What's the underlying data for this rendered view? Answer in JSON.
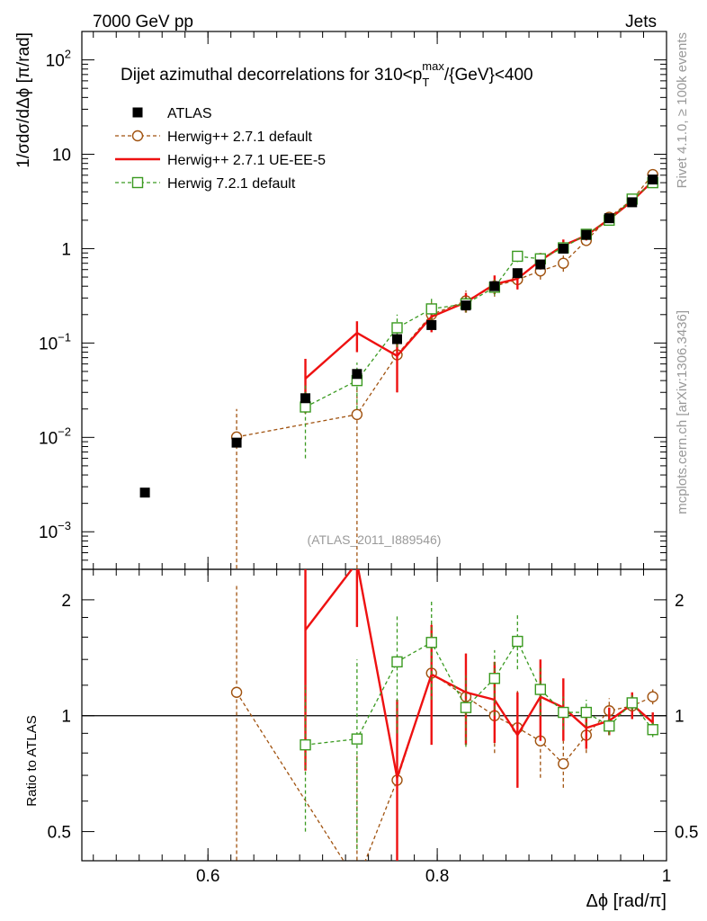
{
  "header": {
    "left": "7000 GeV pp",
    "right": "Jets"
  },
  "side_labels": {
    "rivet": "Rivet 4.1.0, ≥ 100k events",
    "mcplots": "mcplots.cern.ch [arXiv:1306.3436]"
  },
  "chart_data": {
    "type": "scatter",
    "title": "Dijet azimuthal decorrelations for 310<p_T^max/{GeV}<400",
    "title_parts": {
      "pre": "Dijet azimuthal decorrelations for 310<p",
      "sub": "T",
      "sup": "max",
      "post": "/{GeV}<400"
    },
    "analysis_tag": "(ATLAS_2011_I889546)",
    "xlabel": "Δϕ [rad/π]",
    "ylabel": "1/σdσ/dΔϕ [π/rad]",
    "ratio_ylabel": "Ratio to ATLAS",
    "xlim": [
      0.49,
      1.0
    ],
    "ylim": [
      0.0004,
      200
    ],
    "ratio_ylim": [
      0.42,
      2.4
    ],
    "x_ticks": [
      0.6,
      0.8,
      1.0
    ],
    "x_tick_labels": [
      "0.6",
      "0.8",
      "1"
    ],
    "y_tick_labels": [
      {
        "base": "10",
        "exp": "2",
        "value": 100
      },
      {
        "base": "10",
        "exp": "",
        "value": 10
      },
      {
        "base": "1",
        "exp": "",
        "value": 1
      },
      {
        "base": "10",
        "exp": "−1",
        "value": 0.1
      },
      {
        "base": "10",
        "exp": "−2",
        "value": 0.01
      },
      {
        "base": "10",
        "exp": "−3",
        "value": 0.001
      }
    ],
    "ratio_ticks": [
      {
        "label": "2",
        "value": 2
      },
      {
        "label": "1",
        "value": 1
      },
      {
        "label": "0.5",
        "value": 0.5
      }
    ],
    "series": [
      {
        "name": "ATLAS",
        "color": "#000000",
        "style": "data",
        "points": [
          {
            "x": 0.545,
            "y": 0.0026
          },
          {
            "x": 0.625,
            "y": 0.0088
          },
          {
            "x": 0.685,
            "y": 0.026
          },
          {
            "x": 0.73,
            "y": 0.047
          },
          {
            "x": 0.765,
            "y": 0.11
          },
          {
            "x": 0.795,
            "y": 0.155
          },
          {
            "x": 0.825,
            "y": 0.25
          },
          {
            "x": 0.85,
            "y": 0.4
          },
          {
            "x": 0.87,
            "y": 0.55
          },
          {
            "x": 0.89,
            "y": 0.68
          },
          {
            "x": 0.91,
            "y": 1.0
          },
          {
            "x": 0.93,
            "y": 1.4
          },
          {
            "x": 0.95,
            "y": 2.1
          },
          {
            "x": 0.97,
            "y": 3.1
          },
          {
            "x": 0.988,
            "y": 5.4
          }
        ]
      },
      {
        "name": "Herwig++ 2.7.1 default",
        "color": "#a0520f",
        "style": "dashed-circle",
        "points": [
          {
            "x": 0.625,
            "y": 0.0101,
            "lo": 0.0003,
            "hi": 0.02,
            "r": 1.15,
            "rlo": 0.3,
            "rhi": 2.2
          },
          {
            "x": 0.73,
            "y": 0.0175,
            "lo": 0.0003,
            "hi": 0.035,
            "r": 0.37,
            "rlo": 0.3,
            "rhi": 0.8
          },
          {
            "x": 0.765,
            "y": 0.075,
            "lo": 0.03,
            "hi": 0.13,
            "r": 0.68,
            "rlo": 0.3,
            "rhi": 1.1
          },
          {
            "x": 0.795,
            "y": 0.2,
            "lo": 0.14,
            "hi": 0.27,
            "r": 1.29,
            "rlo": 0.9,
            "rhi": 1.75
          },
          {
            "x": 0.825,
            "y": 0.28,
            "lo": 0.22,
            "hi": 0.36,
            "r": 1.12,
            "rlo": 0.88,
            "rhi": 1.45
          },
          {
            "x": 0.85,
            "y": 0.4,
            "lo": 0.31,
            "hi": 0.5,
            "r": 1.0,
            "rlo": 0.8,
            "rhi": 1.28
          },
          {
            "x": 0.87,
            "y": 0.47,
            "lo": 0.37,
            "hi": 0.6,
            "r": 0.93,
            "rlo": 0.75,
            "rhi": 1.17
          },
          {
            "x": 0.89,
            "y": 0.58,
            "lo": 0.47,
            "hi": 0.72,
            "r": 0.86,
            "rlo": 0.69,
            "rhi": 1.04
          },
          {
            "x": 0.91,
            "y": 0.7,
            "lo": 0.57,
            "hi": 0.85,
            "r": 0.75,
            "rlo": 0.65,
            "rhi": 0.86
          },
          {
            "x": 0.93,
            "y": 1.22,
            "lo": 1.08,
            "hi": 1.38,
            "r": 0.89,
            "rlo": 0.8,
            "rhi": 1.0
          },
          {
            "x": 0.95,
            "y": 2.15,
            "lo": 1.95,
            "hi": 2.35,
            "r": 1.03,
            "rlo": 0.95,
            "rhi": 1.11
          },
          {
            "x": 0.97,
            "y": 3.3,
            "lo": 3.05,
            "hi": 3.55,
            "r": 1.06,
            "rlo": 1.0,
            "rhi": 1.12
          },
          {
            "x": 0.988,
            "y": 6.1,
            "lo": 5.7,
            "hi": 6.5,
            "r": 1.12,
            "rlo": 1.07,
            "rhi": 1.17
          }
        ]
      },
      {
        "name": "Herwig++ 2.7.1 UE-EE-5",
        "color": "#ee1111",
        "style": "solid",
        "points": [
          {
            "x": 0.685,
            "y": 0.042,
            "lo": 0.018,
            "hi": 0.068,
            "r": 1.67,
            "rlo": 0.72,
            "rhi": 2.4
          },
          {
            "x": 0.73,
            "y": 0.128,
            "lo": 0.08,
            "hi": 0.17,
            "r": 2.5,
            "rlo": 1.7,
            "rhi": 3.5
          },
          {
            "x": 0.765,
            "y": 0.073,
            "lo": 0.03,
            "hi": 0.12,
            "r": 0.69,
            "rlo": 0.3,
            "rhi": 1.1
          },
          {
            "x": 0.795,
            "y": 0.19,
            "lo": 0.13,
            "hi": 0.26,
            "r": 1.28,
            "rlo": 0.84,
            "rhi": 1.72
          },
          {
            "x": 0.825,
            "y": 0.27,
            "lo": 0.21,
            "hi": 0.34,
            "r": 1.15,
            "rlo": 0.84,
            "rhi": 1.45
          },
          {
            "x": 0.85,
            "y": 0.42,
            "lo": 0.33,
            "hi": 0.52,
            "r": 1.1,
            "rlo": 0.85,
            "rhi": 1.38
          },
          {
            "x": 0.87,
            "y": 0.48,
            "lo": 0.37,
            "hi": 0.6,
            "r": 0.89,
            "rlo": 0.65,
            "rhi": 1.15
          },
          {
            "x": 0.89,
            "y": 0.75,
            "lo": 0.6,
            "hi": 0.9,
            "r": 1.12,
            "rlo": 0.86,
            "rhi": 1.4
          },
          {
            "x": 0.91,
            "y": 1.08,
            "lo": 0.92,
            "hi": 1.25,
            "r": 1.05,
            "rlo": 0.86,
            "rhi": 1.25
          },
          {
            "x": 0.93,
            "y": 1.38,
            "lo": 1.22,
            "hi": 1.55,
            "r": 0.93,
            "rlo": 0.82,
            "rhi": 1.04
          },
          {
            "x": 0.95,
            "y": 2.05,
            "lo": 1.85,
            "hi": 2.25,
            "r": 0.97,
            "rlo": 0.89,
            "rhi": 1.05
          },
          {
            "x": 0.97,
            "y": 3.2,
            "lo": 2.95,
            "hi": 3.45,
            "r": 1.07,
            "rlo": 0.98,
            "rhi": 1.15
          },
          {
            "x": 0.988,
            "y": 5.2,
            "lo": 4.9,
            "hi": 5.5,
            "r": 0.96,
            "rlo": 0.9,
            "rhi": 1.02
          }
        ]
      },
      {
        "name": "Herwig 7.2.1 default",
        "color": "#3a9a20",
        "style": "dashed-square",
        "points": [
          {
            "x": 0.685,
            "y": 0.021,
            "lo": 0.006,
            "hi": 0.036,
            "r": 0.84,
            "rlo": 0.5,
            "rhi": 1.2
          },
          {
            "x": 0.73,
            "y": 0.04,
            "lo": 0.02,
            "hi": 0.062,
            "r": 0.87,
            "rlo": 0.45,
            "rhi": 1.4
          },
          {
            "x": 0.765,
            "y": 0.145,
            "lo": 0.09,
            "hi": 0.2,
            "r": 1.38,
            "rlo": 0.9,
            "rhi": 1.82
          },
          {
            "x": 0.795,
            "y": 0.23,
            "lo": 0.17,
            "hi": 0.3,
            "r": 1.55,
            "rlo": 1.1,
            "rhi": 2.0
          },
          {
            "x": 0.825,
            "y": 0.26,
            "lo": 0.21,
            "hi": 0.32,
            "r": 1.05,
            "rlo": 0.83,
            "rhi": 1.27
          },
          {
            "x": 0.85,
            "y": 0.39,
            "lo": 0.32,
            "hi": 0.47,
            "r": 1.25,
            "rlo": 1.0,
            "rhi": 1.48
          },
          {
            "x": 0.87,
            "y": 0.83,
            "lo": 0.72,
            "hi": 0.95,
            "r": 1.56,
            "rlo": 1.32,
            "rhi": 1.83
          },
          {
            "x": 0.89,
            "y": 0.78,
            "lo": 0.68,
            "hi": 0.89,
            "r": 1.17,
            "rlo": 1.0,
            "rhi": 1.35
          },
          {
            "x": 0.91,
            "y": 1.02,
            "lo": 0.92,
            "hi": 1.12,
            "r": 1.02,
            "rlo": 0.92,
            "rhi": 1.12
          },
          {
            "x": 0.93,
            "y": 1.42,
            "lo": 1.32,
            "hi": 1.52,
            "r": 1.02,
            "rlo": 0.94,
            "rhi": 1.1
          },
          {
            "x": 0.95,
            "y": 2.0,
            "lo": 1.88,
            "hi": 2.12,
            "r": 0.94,
            "rlo": 0.89,
            "rhi": 0.99
          },
          {
            "x": 0.97,
            "y": 3.35,
            "lo": 3.15,
            "hi": 3.55,
            "r": 1.08,
            "rlo": 1.03,
            "rhi": 1.13
          },
          {
            "x": 0.988,
            "y": 5.0,
            "lo": 4.75,
            "hi": 5.25,
            "r": 0.92,
            "rlo": 0.88,
            "rhi": 0.96
          }
        ]
      }
    ]
  }
}
